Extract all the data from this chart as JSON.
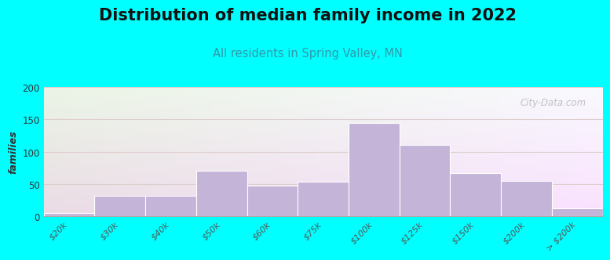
{
  "title": "Distribution of median family income in 2022",
  "subtitle": "All residents in Spring Valley, MN",
  "ylabel": "families",
  "categories": [
    "$20k",
    "$30k",
    "$40k",
    "$50k",
    "$60k",
    "$75k",
    "$100k",
    "$125k",
    "$150k",
    "$200k",
    "> $200k"
  ],
  "values": [
    5,
    32,
    32,
    70,
    48,
    54,
    144,
    110,
    67,
    55,
    12
  ],
  "bar_color": "#c4b4d8",
  "bar_edgecolor": "#ffffff",
  "bg_color": "#00ffff",
  "plot_bg_color": "#f0f5e8",
  "ylim": [
    0,
    200
  ],
  "yticks": [
    0,
    50,
    100,
    150,
    200
  ],
  "title_fontsize": 15,
  "subtitle_fontsize": 10.5,
  "subtitle_color": "#3399aa",
  "watermark": "City-Data.com",
  "grid_color": "#ddcccc",
  "bar_width": 1.0
}
